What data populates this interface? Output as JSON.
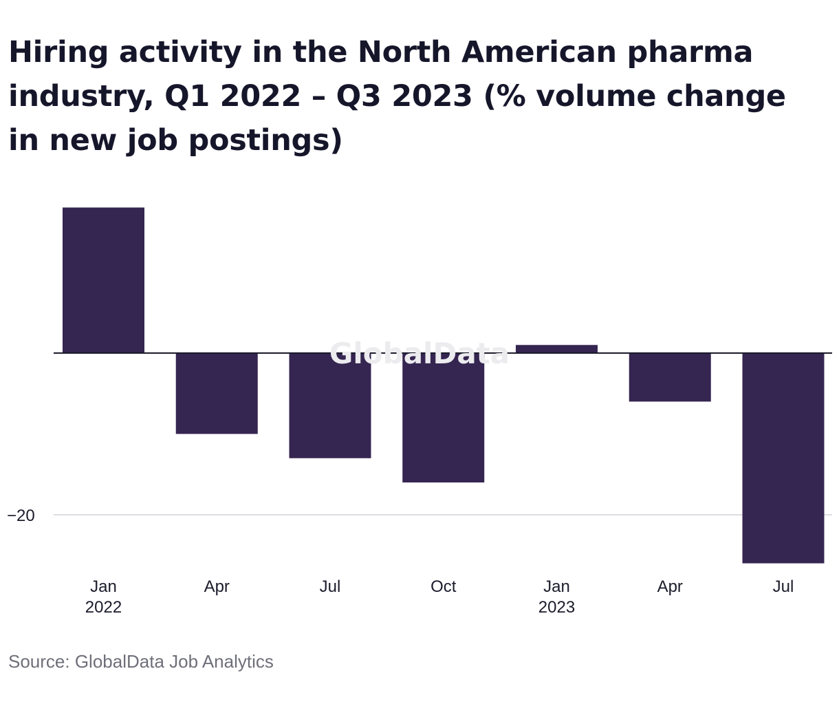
{
  "chart_data": {
    "type": "bar",
    "title": "Hiring activity in the North American pharma industry, Q1 2022 – Q3 2023 (% volume change in new job postings)",
    "categories": [
      "Jan 2022",
      "Apr",
      "Jul",
      "Oct",
      "Jan 2023",
      "Apr",
      "Jul"
    ],
    "x_tick_labels": [
      {
        "line1": "Jan",
        "line2": "2022"
      },
      {
        "line1": "Apr",
        "line2": ""
      },
      {
        "line1": "Jul",
        "line2": ""
      },
      {
        "line1": "Oct",
        "line2": ""
      },
      {
        "line1": "Jan",
        "line2": "2023"
      },
      {
        "line1": "Apr",
        "line2": ""
      },
      {
        "line1": "Jul",
        "line2": ""
      }
    ],
    "values": [
      18,
      -10,
      -13,
      -16,
      1,
      -6,
      -26
    ],
    "y_ticks": [
      {
        "value": -20,
        "label": "−20"
      }
    ],
    "ylim": [
      -28,
      20
    ],
    "xlabel": "",
    "ylabel": "",
    "bar_color": "#352551",
    "grid": true
  },
  "source": "Source: GlobalData Job Analytics",
  "watermark": "GlobalData"
}
